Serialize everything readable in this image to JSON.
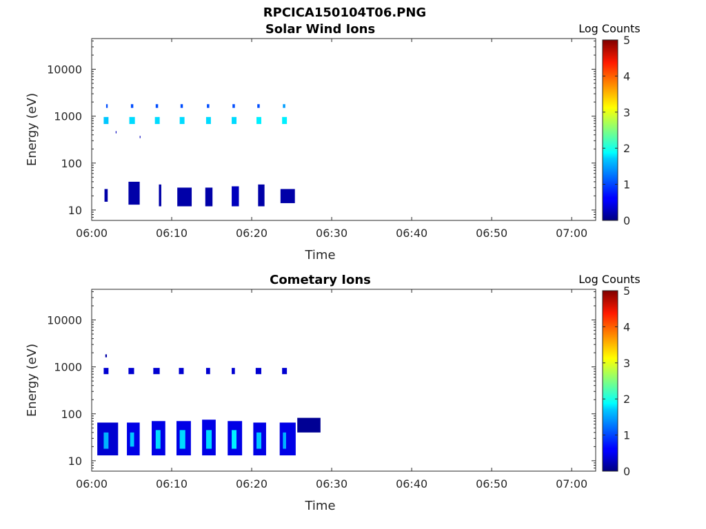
{
  "figure": {
    "title": "RPCICA150104T06.PNG"
  },
  "chart_data": [
    {
      "type": "heatmap",
      "title": "Solar Wind Ions",
      "xlabel": "Time",
      "ylabel": "Energy (eV)",
      "yscale": "log",
      "xlim": [
        "06:00",
        "07:03"
      ],
      "ylim": [
        6,
        45000
      ],
      "xticks": [
        "06:00",
        "06:10",
        "06:20",
        "06:30",
        "06:40",
        "06:50",
        "07:00"
      ],
      "yticks": [
        "10",
        "100",
        "1000",
        "10000"
      ],
      "colorbar": {
        "label": "Log Counts",
        "range": [
          0,
          5
        ],
        "ticks": [
          "0",
          "1",
          "2",
          "3",
          "4",
          "5"
        ],
        "colormap": "jet"
      },
      "cells": [
        {
          "t0": "06:01.5",
          "t1": "06:02.1",
          "e0": 680,
          "e1": 960,
          "log_counts": 1.6
        },
        {
          "t0": "06:01.8",
          "t1": "06:02.0",
          "e0": 1500,
          "e1": 1800,
          "log_counts": 1.0
        },
        {
          "t0": "06:01.6",
          "t1": "06:02.0",
          "e0": 15,
          "e1": 28,
          "log_counts": 0.2
        },
        {
          "t0": "06:03.0",
          "t1": "06:03.1",
          "e0": 430,
          "e1": 480,
          "log_counts": 0.3
        },
        {
          "t0": "06:04.7",
          "t1": "06:05.4",
          "e0": 680,
          "e1": 960,
          "log_counts": 1.7
        },
        {
          "t0": "06:04.9",
          "t1": "06:05.2",
          "e0": 1500,
          "e1": 1800,
          "log_counts": 1.0
        },
        {
          "t0": "06:04.6",
          "t1": "06:06.0",
          "e0": 13,
          "e1": 40,
          "log_counts": 0.2
        },
        {
          "t0": "06:06.0",
          "t1": "06:06.1",
          "e0": 340,
          "e1": 380,
          "log_counts": 0.3
        },
        {
          "t0": "06:07.9",
          "t1": "06:08.5",
          "e0": 680,
          "e1": 960,
          "log_counts": 1.7
        },
        {
          "t0": "06:08.0",
          "t1": "06:08.3",
          "e0": 1500,
          "e1": 1800,
          "log_counts": 1.0
        },
        {
          "t0": "06:08.4",
          "t1": "06:08.7",
          "e0": 12,
          "e1": 35,
          "log_counts": 0.2
        },
        {
          "t0": "06:11.0",
          "t1": "06:11.6",
          "e0": 680,
          "e1": 960,
          "log_counts": 1.7
        },
        {
          "t0": "06:11.1",
          "t1": "06:11.4",
          "e0": 1500,
          "e1": 1800,
          "log_counts": 1.0
        },
        {
          "t0": "06:10.7",
          "t1": "06:12.5",
          "e0": 12,
          "e1": 30,
          "log_counts": 0.2
        },
        {
          "t0": "06:14.3",
          "t1": "06:14.9",
          "e0": 680,
          "e1": 960,
          "log_counts": 1.7
        },
        {
          "t0": "06:14.4",
          "t1": "06:14.7",
          "e0": 1500,
          "e1": 1800,
          "log_counts": 1.0
        },
        {
          "t0": "06:14.2",
          "t1": "06:15.1",
          "e0": 12,
          "e1": 30,
          "log_counts": 0.2
        },
        {
          "t0": "06:17.5",
          "t1": "06:18.1",
          "e0": 680,
          "e1": 960,
          "log_counts": 1.7
        },
        {
          "t0": "06:17.6",
          "t1": "06:17.9",
          "e0": 1500,
          "e1": 1800,
          "log_counts": 1.0
        },
        {
          "t0": "06:17.5",
          "t1": "06:18.4",
          "e0": 12,
          "e1": 32,
          "log_counts": 0.3
        },
        {
          "t0": "06:20.6",
          "t1": "06:21.2",
          "e0": 680,
          "e1": 960,
          "log_counts": 1.8
        },
        {
          "t0": "06:20.7",
          "t1": "06:21.0",
          "e0": 1500,
          "e1": 1800,
          "log_counts": 1.0
        },
        {
          "t0": "06:20.8",
          "t1": "06:21.6",
          "e0": 12,
          "e1": 35,
          "log_counts": 0.2
        },
        {
          "t0": "06:23.8",
          "t1": "06:24.4",
          "e0": 680,
          "e1": 960,
          "log_counts": 1.8
        },
        {
          "t0": "06:23.9",
          "t1": "06:24.2",
          "e0": 1500,
          "e1": 1800,
          "log_counts": 1.4
        },
        {
          "t0": "06:23.6",
          "t1": "06:25.4",
          "e0": 14,
          "e1": 28,
          "log_counts": 0.2
        }
      ]
    },
    {
      "type": "heatmap",
      "title": "Cometary Ions",
      "xlabel": "Time",
      "ylabel": "Energy (eV)",
      "yscale": "log",
      "xlim": [
        "06:00",
        "07:03"
      ],
      "ylim": [
        6,
        45000
      ],
      "xticks": [
        "06:00",
        "06:10",
        "06:20",
        "06:30",
        "06:40",
        "06:50",
        "07:00"
      ],
      "yticks": [
        "10",
        "100",
        "1000",
        "10000"
      ],
      "colorbar": {
        "label": "Log Counts",
        "range": [
          0,
          5
        ],
        "ticks": [
          "0",
          "1",
          "2",
          "3",
          "4",
          "5"
        ],
        "colormap": "jet"
      },
      "cells": [
        {
          "t0": "06:01.5",
          "t1": "06:02.1",
          "e0": 700,
          "e1": 950,
          "log_counts": 0.4
        },
        {
          "t0": "06:01.7",
          "t1": "06:01.9",
          "e0": 1600,
          "e1": 1850,
          "log_counts": 0.2
        },
        {
          "t0": "06:00.7",
          "t1": "06:03.3",
          "e0": 13,
          "e1": 65,
          "log_counts": 0.4
        },
        {
          "t0": "06:01.5",
          "t1": "06:02.1",
          "e0": 18,
          "e1": 40,
          "log_counts": 1.5
        },
        {
          "t0": "06:04.6",
          "t1": "06:05.3",
          "e0": 700,
          "e1": 950,
          "log_counts": 0.4
        },
        {
          "t0": "06:04.4",
          "t1": "06:06.0",
          "e0": 13,
          "e1": 65,
          "log_counts": 0.5
        },
        {
          "t0": "06:04.8",
          "t1": "06:05.3",
          "e0": 20,
          "e1": 40,
          "log_counts": 1.6
        },
        {
          "t0": "06:07.7",
          "t1": "06:08.5",
          "e0": 700,
          "e1": 950,
          "log_counts": 0.4
        },
        {
          "t0": "06:07.5",
          "t1": "06:09.2",
          "e0": 13,
          "e1": 70,
          "log_counts": 0.5
        },
        {
          "t0": "06:08.0",
          "t1": "06:08.6",
          "e0": 18,
          "e1": 45,
          "log_counts": 1.7
        },
        {
          "t0": "06:10.9",
          "t1": "06:11.5",
          "e0": 700,
          "e1": 950,
          "log_counts": 0.4
        },
        {
          "t0": "06:10.6",
          "t1": "06:12.4",
          "e0": 13,
          "e1": 70,
          "log_counts": 0.5
        },
        {
          "t0": "06:11.0",
          "t1": "06:11.7",
          "e0": 18,
          "e1": 45,
          "log_counts": 1.7
        },
        {
          "t0": "06:14.3",
          "t1": "06:14.8",
          "e0": 700,
          "e1": 950,
          "log_counts": 0.4
        },
        {
          "t0": "06:13.8",
          "t1": "06:15.5",
          "e0": 13,
          "e1": 75,
          "log_counts": 0.5
        },
        {
          "t0": "06:14.3",
          "t1": "06:15.0",
          "e0": 18,
          "e1": 45,
          "log_counts": 1.7
        },
        {
          "t0": "06:17.5",
          "t1": "06:17.9",
          "e0": 700,
          "e1": 950,
          "log_counts": 0.4
        },
        {
          "t0": "06:17.0",
          "t1": "06:18.8",
          "e0": 13,
          "e1": 70,
          "log_counts": 0.5
        },
        {
          "t0": "06:17.5",
          "t1": "06:18.1",
          "e0": 18,
          "e1": 45,
          "log_counts": 1.8
        },
        {
          "t0": "06:20.5",
          "t1": "06:21.2",
          "e0": 700,
          "e1": 950,
          "log_counts": 0.4
        },
        {
          "t0": "06:20.2",
          "t1": "06:21.8",
          "e0": 13,
          "e1": 65,
          "log_counts": 0.5
        },
        {
          "t0": "06:20.6",
          "t1": "06:21.2",
          "e0": 18,
          "e1": 40,
          "log_counts": 1.6
        },
        {
          "t0": "06:23.8",
          "t1": "06:24.4",
          "e0": 700,
          "e1": 950,
          "log_counts": 0.4
        },
        {
          "t0": "06:23.5",
          "t1": "06:25.5",
          "e0": 13,
          "e1": 65,
          "log_counts": 0.5
        },
        {
          "t0": "06:23.9",
          "t1": "06:24.3",
          "e0": 18,
          "e1": 40,
          "log_counts": 1.5
        },
        {
          "t0": "06:25.7",
          "t1": "06:28.6",
          "e0": 40,
          "e1": 82,
          "log_counts": 0.1
        }
      ]
    }
  ]
}
